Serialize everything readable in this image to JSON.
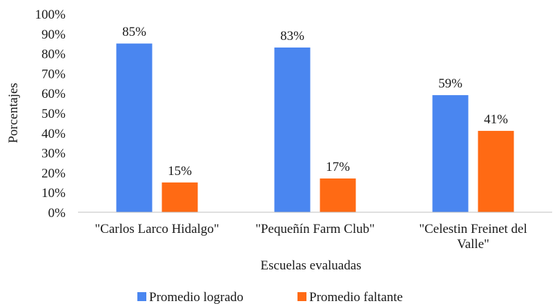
{
  "chart_data": {
    "type": "bar",
    "categories": [
      [
        "\"Carlos Larco Hidalgo\""
      ],
      [
        "\"Pequeñín Farm Club\""
      ],
      [
        "\"Celestin Freinet del",
        "Valle\""
      ]
    ],
    "series": [
      {
        "name": "Promedio logrado",
        "values": [
          85,
          83,
          59
        ],
        "labels": [
          "85%",
          "83%",
          "59%"
        ],
        "color": "#4a86f0"
      },
      {
        "name": "Promedio faltante",
        "values": [
          15,
          17,
          41
        ],
        "labels": [
          "15%",
          "17%",
          "41%"
        ],
        "color": "#ff6a14"
      }
    ],
    "title": "",
    "xlabel": "Escuelas evaluadas",
    "ylabel": "Porcentajes",
    "ylim": [
      0,
      100
    ],
    "yticks": [
      0,
      10,
      20,
      30,
      40,
      50,
      60,
      70,
      80,
      90,
      100
    ],
    "ytick_labels": [
      "0%",
      "10%",
      "20%",
      "30%",
      "40%",
      "50%",
      "60%",
      "70%",
      "80%",
      "90%",
      "100%"
    ],
    "grid": false,
    "legend_position": "bottom"
  }
}
